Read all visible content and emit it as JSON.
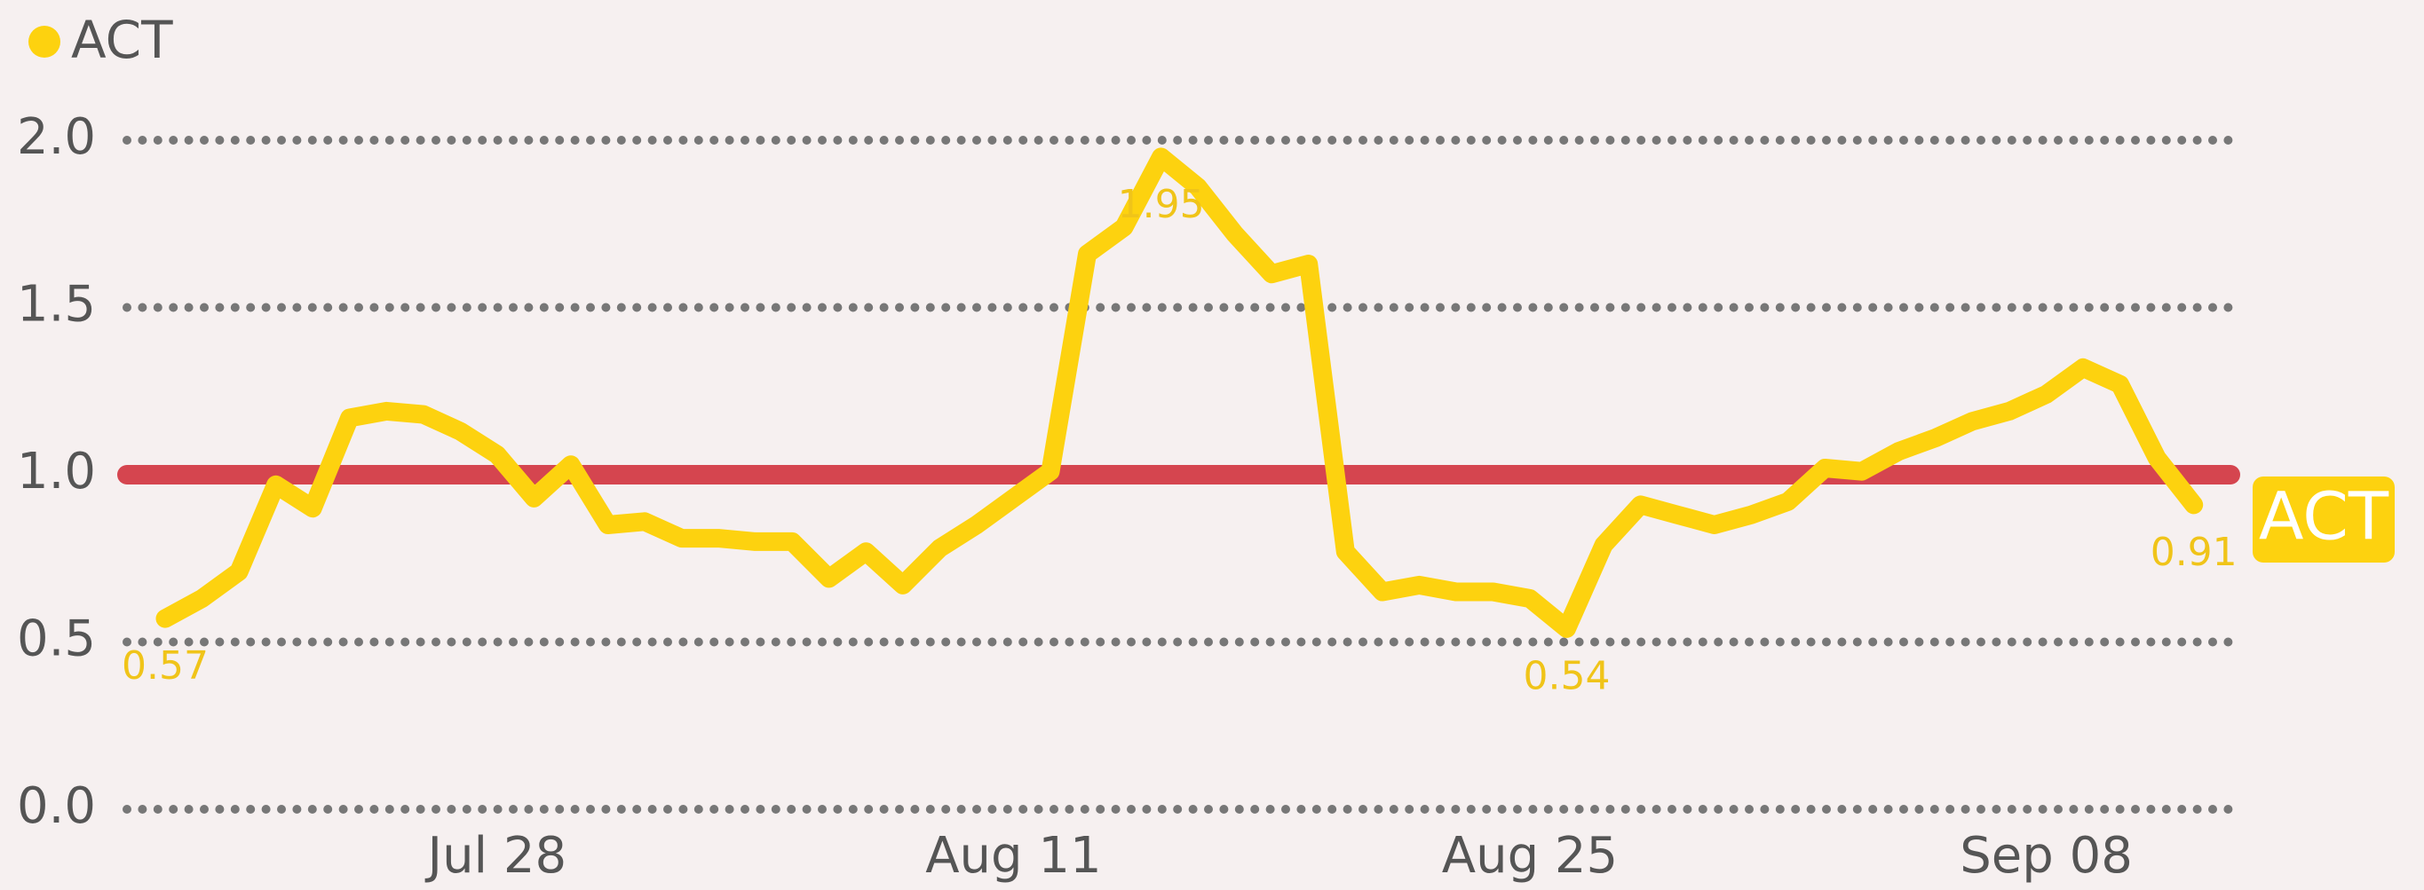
{
  "chart_data": {
    "type": "line",
    "categories": [
      null,
      null,
      null,
      null,
      null,
      null,
      null,
      null,
      null,
      "Jul 28",
      null,
      null,
      null,
      null,
      null,
      null,
      null,
      null,
      null,
      null,
      null,
      null,
      null,
      "Aug 11",
      null,
      null,
      null,
      null,
      null,
      null,
      null,
      null,
      null,
      null,
      null,
      null,
      null,
      "Aug 25",
      null,
      null,
      null,
      null,
      null,
      null,
      null,
      null,
      null,
      null,
      null,
      null,
      null,
      "Sep 08",
      null,
      null,
      null,
      null
    ],
    "series": [
      {
        "name": "ACT",
        "color": "#fdd20f",
        "values": [
          0.57,
          0.63,
          0.71,
          0.97,
          0.9,
          1.17,
          1.19,
          1.18,
          1.13,
          1.06,
          0.93,
          1.03,
          0.85,
          0.86,
          0.81,
          0.81,
          0.8,
          0.8,
          0.69,
          0.77,
          0.67,
          0.78,
          0.85,
          0.93,
          1.01,
          1.66,
          1.74,
          1.95,
          1.86,
          1.72,
          1.6,
          1.63,
          0.77,
          0.65,
          0.67,
          0.65,
          0.65,
          0.63,
          0.54,
          0.79,
          0.91,
          0.88,
          0.85,
          0.88,
          0.92,
          1.02,
          1.01,
          1.07,
          1.11,
          1.16,
          1.19,
          1.24,
          1.32,
          1.27,
          1.05,
          0.91
        ],
        "value_labels": [
          "0.57",
          null,
          null,
          null,
          null,
          null,
          null,
          null,
          null,
          null,
          null,
          null,
          null,
          null,
          null,
          null,
          null,
          null,
          null,
          null,
          null,
          null,
          null,
          null,
          null,
          null,
          null,
          "1.95",
          null,
          null,
          null,
          null,
          null,
          null,
          null,
          null,
          null,
          null,
          "0.54",
          null,
          null,
          null,
          null,
          null,
          null,
          null,
          null,
          null,
          null,
          null,
          null,
          null,
          null,
          null,
          null,
          "0.91"
        ]
      }
    ],
    "ylim": [
      0,
      2
    ],
    "yticks": [
      {
        "value": 0,
        "label": "0.0"
      },
      {
        "value": 0.5,
        "label": "0.5"
      },
      {
        "value": 1,
        "label": "1.0"
      },
      {
        "value": 1.5,
        "label": "1.5"
      },
      {
        "value": 2,
        "label": "2.0"
      }
    ],
    "grid": true,
    "legend": "top-left",
    "reference_lines": [
      {
        "value": 1,
        "label": "ACT",
        "color": "#d5454f",
        "label_color": "#fdd20f"
      }
    ]
  }
}
